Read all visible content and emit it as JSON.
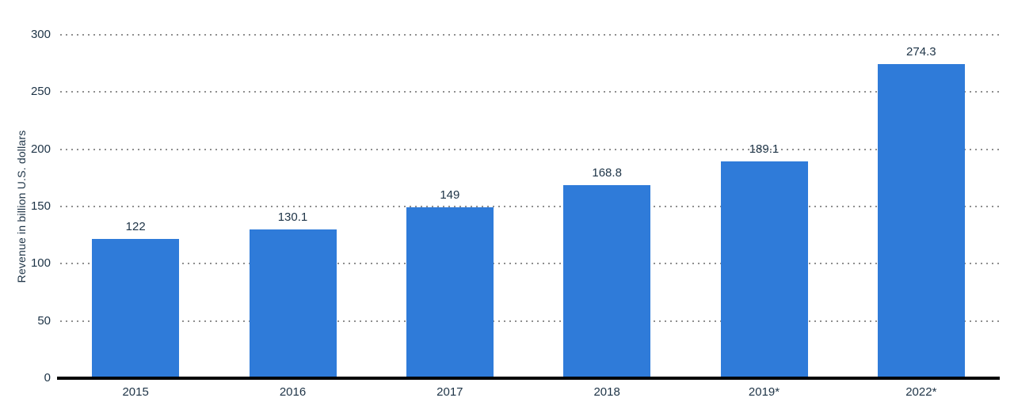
{
  "chart_data": {
    "type": "bar",
    "categories": [
      "2015",
      "2016",
      "2017",
      "2018",
      "2019*",
      "2022*"
    ],
    "values": [
      122,
      130.1,
      149,
      168.8,
      189.1,
      274.3
    ],
    "value_labels": [
      "122",
      "130.1",
      "149",
      "168.8",
      "189.1",
      "274.3"
    ],
    "title": "",
    "xlabel": "",
    "ylabel": "Revenue in billion U.S. dollars",
    "ylim": [
      0,
      300
    ],
    "yticks": [
      0,
      50,
      100,
      150,
      200,
      250,
      300
    ],
    "grid": "horizontal-dotted",
    "legend": "none",
    "colors": {
      "bar": "#2f7bd9",
      "text": "#1d3346",
      "gridline": "#8f8f8f",
      "axis_line": "#000000",
      "background": "#ffffff"
    }
  }
}
